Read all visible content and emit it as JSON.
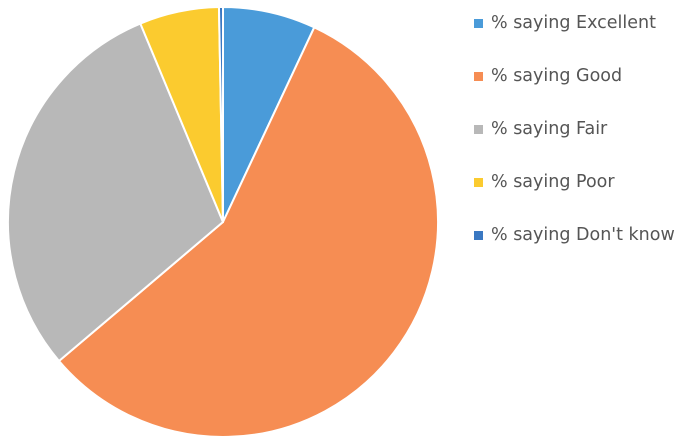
{
  "chart_data": {
    "type": "pie",
    "title": "",
    "legend_position": "right",
    "categories": [
      "% saying Excellent",
      "% saying Good",
      "% saying Fair",
      "% saying Poor",
      "% saying Don't know"
    ],
    "values": [
      7,
      57,
      30,
      6,
      0.3
    ],
    "unit": "%",
    "colors": [
      "#4a9bd9",
      "#f68d53",
      "#b8b8b8",
      "#fbcb2f",
      "#3a78c2"
    ],
    "start_angle_deg": 0,
    "direction": "clockwise"
  }
}
